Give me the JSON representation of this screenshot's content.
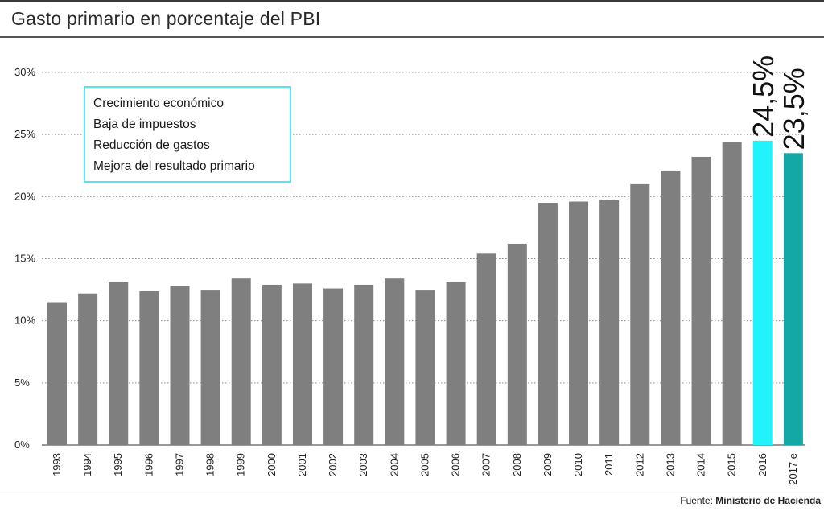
{
  "title": "Gasto primario en porcentaje del PBI",
  "source": {
    "prefix": "Fuente:",
    "name": "Ministerio de Hacienda"
  },
  "legend_box": {
    "items": [
      "Crecimiento económico",
      "Baja de impuestos",
      "Reducción de gastos",
      "Mejora del resultado primario"
    ],
    "border_color": "#4fe8f2"
  },
  "chart_data": {
    "type": "bar",
    "title": "Gasto primario en porcentaje del PBI",
    "xlabel": "",
    "ylabel": "",
    "ylim": [
      0,
      30
    ],
    "yticks": [
      0,
      5,
      10,
      15,
      20,
      25,
      30
    ],
    "ytick_labels": [
      "0%",
      "5%",
      "10%",
      "15%",
      "20%",
      "25%",
      "30%"
    ],
    "grid": "horizontal dotted",
    "categories": [
      "1993",
      "1994",
      "1995",
      "1996",
      "1997",
      "1998",
      "1999",
      "2000",
      "2001",
      "2002",
      "2003",
      "2004",
      "2005",
      "2006",
      "2007",
      "2008",
      "2009",
      "2010",
      "2011",
      "2012",
      "2013",
      "2014",
      "2015",
      "2016",
      "2017 e"
    ],
    "values": [
      11.5,
      12.2,
      13.1,
      12.4,
      12.8,
      12.5,
      13.4,
      12.9,
      13.0,
      12.6,
      12.9,
      13.4,
      12.5,
      13.1,
      15.4,
      16.2,
      19.5,
      19.6,
      19.7,
      21.0,
      22.1,
      23.2,
      24.4,
      24.5,
      23.5
    ],
    "colors": {
      "default": "#7f7f7f",
      "2016": "#22f2fb",
      "2017 e": "#13a8a6"
    },
    "annotations": [
      {
        "category": "2016",
        "text": "24,5%"
      },
      {
        "category": "2017 e",
        "text": "23,5%"
      }
    ]
  }
}
